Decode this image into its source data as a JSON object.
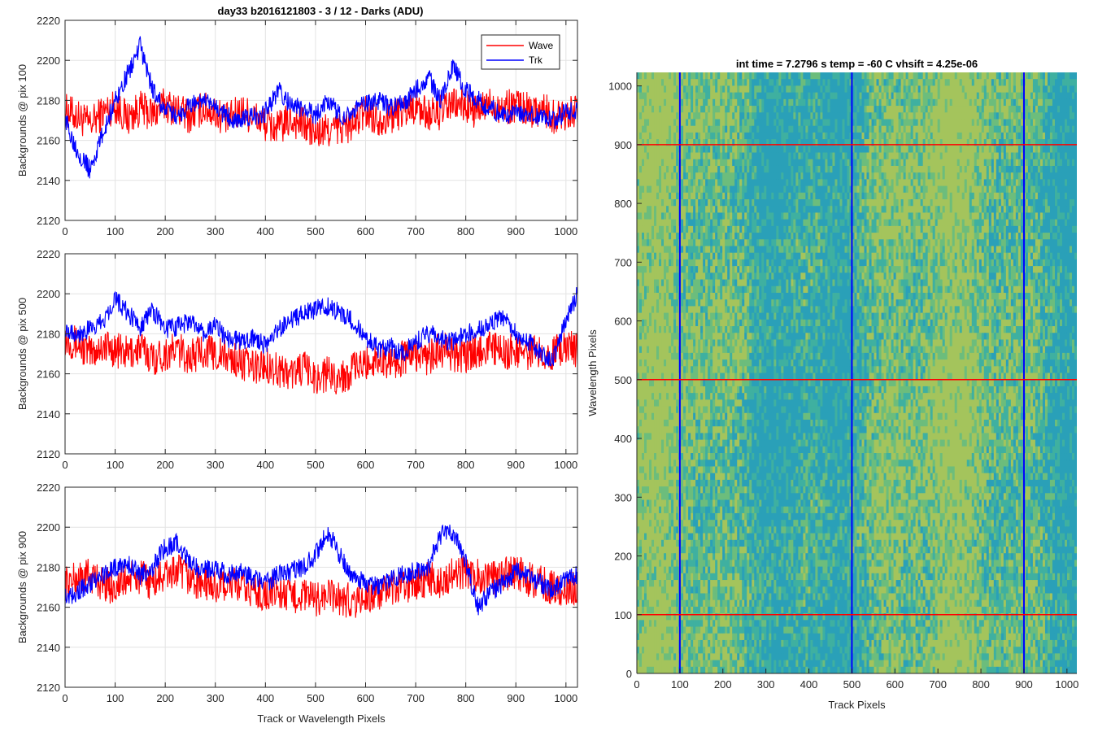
{
  "figure": {
    "title": "day33 b2016121803 - 3 / 12 - Darks (ADU)"
  },
  "chart_data": [
    {
      "type": "line",
      "ylabel": "Backgrounds @ pix 100",
      "xlabel": "",
      "xlim": [
        0,
        1023
      ],
      "ylim": [
        2120,
        2220
      ],
      "xticks": [
        0,
        100,
        200,
        300,
        400,
        500,
        600,
        700,
        800,
        900,
        1000
      ],
      "yticks": [
        2120,
        2140,
        2160,
        2180,
        2200,
        2220
      ],
      "grid": true,
      "legend": "top-right",
      "series": [
        {
          "name": "Wave",
          "color": "#ff0000",
          "x": [
            0,
            25,
            50,
            75,
            100,
            125,
            150,
            175,
            200,
            225,
            250,
            275,
            300,
            325,
            350,
            375,
            400,
            425,
            450,
            475,
            500,
            525,
            550,
            575,
            600,
            625,
            650,
            675,
            700,
            725,
            750,
            775,
            800,
            825,
            850,
            875,
            900,
            925,
            950,
            975,
            1000,
            1023
          ],
          "y": [
            2175,
            2172,
            2168,
            2174,
            2177,
            2171,
            2176,
            2173,
            2178,
            2175,
            2172,
            2176,
            2174,
            2170,
            2175,
            2172,
            2168,
            2166,
            2170,
            2168,
            2163,
            2165,
            2166,
            2168,
            2174,
            2171,
            2172,
            2175,
            2177,
            2173,
            2174,
            2178,
            2177,
            2174,
            2179,
            2176,
            2178,
            2175,
            2176,
            2172,
            2174,
            2175
          ]
        },
        {
          "name": "Trk",
          "color": "#0000ff",
          "x": [
            0,
            25,
            50,
            75,
            100,
            125,
            150,
            175,
            200,
            225,
            250,
            275,
            300,
            325,
            350,
            375,
            400,
            425,
            450,
            475,
            500,
            525,
            550,
            575,
            600,
            625,
            650,
            675,
            700,
            725,
            750,
            775,
            800,
            825,
            850,
            875,
            900,
            925,
            950,
            975,
            1000,
            1023
          ],
          "y": [
            2170,
            2155,
            2145,
            2163,
            2180,
            2193,
            2207,
            2185,
            2175,
            2172,
            2178,
            2180,
            2176,
            2172,
            2170,
            2172,
            2174,
            2185,
            2178,
            2175,
            2173,
            2180,
            2172,
            2175,
            2178,
            2180,
            2176,
            2178,
            2185,
            2192,
            2180,
            2198,
            2185,
            2180,
            2176,
            2172,
            2174,
            2173,
            2172,
            2170,
            2174,
            2176
          ]
        }
      ]
    },
    {
      "type": "line",
      "ylabel": "Backgrounds @ pix 500",
      "xlabel": "",
      "xlim": [
        0,
        1023
      ],
      "ylim": [
        2120,
        2220
      ],
      "xticks": [
        0,
        100,
        200,
        300,
        400,
        500,
        600,
        700,
        800,
        900,
        1000
      ],
      "yticks": [
        2120,
        2140,
        2160,
        2180,
        2200,
        2220
      ],
      "grid": true,
      "series": [
        {
          "name": "Wave",
          "color": "#ff0000",
          "x": [
            0,
            25,
            50,
            75,
            100,
            125,
            150,
            175,
            200,
            225,
            250,
            275,
            300,
            325,
            350,
            375,
            400,
            425,
            450,
            475,
            500,
            525,
            550,
            575,
            600,
            625,
            650,
            675,
            700,
            725,
            750,
            775,
            800,
            825,
            850,
            875,
            900,
            925,
            950,
            975,
            1000,
            1023
          ],
          "y": [
            2178,
            2175,
            2170,
            2174,
            2172,
            2170,
            2173,
            2168,
            2170,
            2172,
            2168,
            2172,
            2170,
            2168,
            2166,
            2163,
            2165,
            2162,
            2160,
            2163,
            2158,
            2160,
            2158,
            2162,
            2165,
            2168,
            2166,
            2168,
            2170,
            2168,
            2172,
            2170,
            2168,
            2172,
            2174,
            2170,
            2172,
            2170,
            2172,
            2170,
            2174,
            2172
          ]
        },
        {
          "name": "Trk",
          "color": "#0000ff",
          "x": [
            0,
            25,
            50,
            75,
            100,
            125,
            150,
            175,
            200,
            225,
            250,
            275,
            300,
            325,
            350,
            375,
            400,
            425,
            450,
            475,
            500,
            525,
            550,
            575,
            600,
            625,
            650,
            675,
            700,
            725,
            750,
            775,
            800,
            825,
            850,
            875,
            900,
            925,
            950,
            975,
            1000,
            1023
          ],
          "y": [
            2183,
            2180,
            2182,
            2186,
            2198,
            2190,
            2184,
            2192,
            2182,
            2184,
            2186,
            2180,
            2184,
            2178,
            2176,
            2178,
            2174,
            2182,
            2186,
            2190,
            2192,
            2194,
            2190,
            2186,
            2178,
            2172,
            2174,
            2170,
            2176,
            2180,
            2178,
            2176,
            2180,
            2182,
            2186,
            2188,
            2180,
            2176,
            2170,
            2168,
            2186,
            2200
          ]
        }
      ]
    },
    {
      "type": "line",
      "ylabel": "Backgrounds @ pix 900",
      "xlabel": "Track or Wavelength Pixels",
      "xlim": [
        0,
        1023
      ],
      "ylim": [
        2120,
        2220
      ],
      "xticks": [
        0,
        100,
        200,
        300,
        400,
        500,
        600,
        700,
        800,
        900,
        1000
      ],
      "yticks": [
        2120,
        2140,
        2160,
        2180,
        2200,
        2220
      ],
      "grid": true,
      "series": [
        {
          "name": "Wave",
          "color": "#ff0000",
          "x": [
            0,
            25,
            50,
            75,
            100,
            125,
            150,
            175,
            200,
            225,
            250,
            275,
            300,
            325,
            350,
            375,
            400,
            425,
            450,
            475,
            500,
            525,
            550,
            575,
            600,
            625,
            650,
            675,
            700,
            725,
            750,
            775,
            800,
            825,
            850,
            875,
            900,
            925,
            950,
            975,
            1000,
            1023
          ],
          "y": [
            2172,
            2174,
            2176,
            2172,
            2170,
            2174,
            2175,
            2172,
            2176,
            2178,
            2174,
            2172,
            2170,
            2172,
            2170,
            2168,
            2166,
            2168,
            2165,
            2166,
            2164,
            2166,
            2164,
            2163,
            2165,
            2166,
            2168,
            2170,
            2172,
            2174,
            2173,
            2176,
            2178,
            2176,
            2174,
            2176,
            2178,
            2174,
            2172,
            2170,
            2168,
            2170
          ]
        },
        {
          "name": "Trk",
          "color": "#0000ff",
          "x": [
            0,
            25,
            50,
            75,
            100,
            125,
            150,
            175,
            200,
            225,
            250,
            275,
            300,
            325,
            350,
            375,
            400,
            425,
            450,
            475,
            500,
            525,
            550,
            575,
            600,
            625,
            650,
            675,
            700,
            725,
            750,
            775,
            800,
            825,
            850,
            875,
            900,
            925,
            950,
            975,
            1000,
            1023
          ],
          "y": [
            2165,
            2168,
            2172,
            2176,
            2180,
            2182,
            2176,
            2180,
            2190,
            2192,
            2182,
            2178,
            2180,
            2176,
            2178,
            2174,
            2172,
            2176,
            2178,
            2180,
            2186,
            2198,
            2185,
            2175,
            2172,
            2170,
            2174,
            2176,
            2178,
            2180,
            2196,
            2198,
            2182,
            2160,
            2168,
            2172,
            2178,
            2176,
            2172,
            2168,
            2174,
            2176
          ]
        }
      ]
    },
    {
      "type": "heatmap",
      "title": "int time = 7.2796 s    temp = -60 C    vhsift = 4.25e-06",
      "xlabel": "Track Pixels",
      "ylabel": "Wavelength Pixels",
      "xlim": [
        0,
        1023
      ],
      "ylim": [
        0,
        1023
      ],
      "xticks": [
        0,
        100,
        200,
        300,
        400,
        500,
        600,
        700,
        800,
        900,
        1000
      ],
      "yticks": [
        0,
        100,
        200,
        300,
        400,
        500,
        600,
        700,
        800,
        900,
        1000
      ],
      "colormap": [
        "#2aa0b8",
        "#3fb0a0",
        "#6cbd7c",
        "#a4c45c"
      ],
      "vertical_lines": {
        "x": [
          100,
          500,
          900
        ],
        "color": "#0000ff"
      },
      "horizontal_lines": {
        "y": [
          100,
          500,
          900
        ],
        "color": "#ff0000"
      }
    }
  ]
}
